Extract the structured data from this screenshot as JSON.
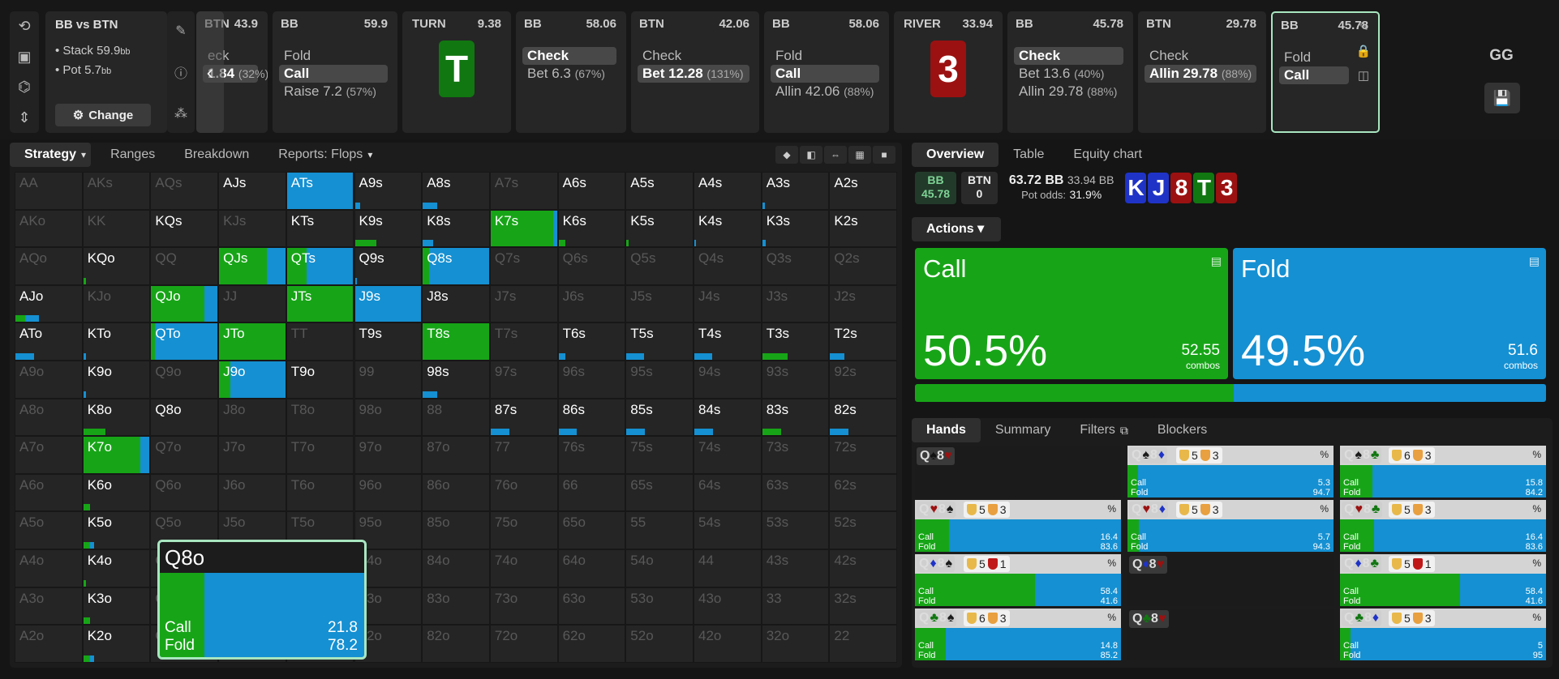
{
  "colors": {
    "call": "#17a517",
    "fold": "#1590d2",
    "accent": "#a8e6c0",
    "card_k": "#1f33c7",
    "card_j": "#1f33c7",
    "card_8": "#9b1111",
    "card_t": "#117711",
    "card_3": "#9b1111"
  },
  "spot": {
    "title": "BB vs BTN",
    "stack_label": "Stack",
    "stack_val": "59.9",
    "stack_unit": "bb",
    "pot_label": "Pot",
    "pot_val": "5.7",
    "pot_unit": "bb",
    "change_label": "Change"
  },
  "history": [
    {
      "player": "BTN",
      "stack": "43.9",
      "actions": [
        {
          "label": "eck",
          "pct": ""
        },
        {
          "label": "1.84",
          "pct": "(32%)",
          "sel": true
        }
      ]
    },
    {
      "player": "BB",
      "stack": "59.9",
      "actions": [
        {
          "label": "Fold",
          "pct": ""
        },
        {
          "label": "Call",
          "pct": "",
          "sel": true
        },
        {
          "label": "Raise 7.2",
          "pct": "(57%)"
        }
      ]
    },
    {
      "street": "TURN",
      "pot": "9.38",
      "card": "T"
    },
    {
      "player": "BB",
      "stack": "58.06",
      "actions": [
        {
          "label": "Check",
          "pct": "",
          "sel": true
        },
        {
          "label": "Bet 6.3",
          "pct": "(67%)"
        }
      ]
    },
    {
      "player": "BTN",
      "stack": "42.06",
      "actions": [
        {
          "label": "Check",
          "pct": ""
        },
        {
          "label": "Bet 12.28",
          "pct": "(131%)",
          "sel": true
        }
      ]
    },
    {
      "player": "BB",
      "stack": "58.06",
      "actions": [
        {
          "label": "Fold",
          "pct": ""
        },
        {
          "label": "Call",
          "pct": "",
          "sel": true
        },
        {
          "label": "Allin 42.06",
          "pct": "(88%)"
        }
      ]
    },
    {
      "street": "RIVER",
      "pot": "33.94",
      "card": "3"
    },
    {
      "player": "BB",
      "stack": "45.78",
      "actions": [
        {
          "label": "Check",
          "pct": "",
          "sel": true
        },
        {
          "label": "Bet 13.6",
          "pct": "(40%)"
        },
        {
          "label": "Allin 29.78",
          "pct": "(88%)"
        }
      ]
    },
    {
      "player": "BTN",
      "stack": "29.78",
      "actions": [
        {
          "label": "Check",
          "pct": ""
        },
        {
          "label": "Allin 29.78",
          "pct": "(88%)",
          "sel": true
        }
      ]
    },
    {
      "player": "BB",
      "stack": "45.78",
      "actions": [
        {
          "label": "Fold",
          "pct": ""
        },
        {
          "label": "Call",
          "pct": "",
          "sel": true
        }
      ],
      "active": true
    }
  ],
  "gg": "GG",
  "left_tabs": [
    "Strategy",
    "Ranges",
    "Breakdown",
    "Reports: Flops"
  ],
  "matrix": {
    "ranks": [
      "A",
      "K",
      "Q",
      "J",
      "T",
      "9",
      "8",
      "7",
      "6",
      "5",
      "4",
      "3",
      "2"
    ],
    "hands": {
      "ATs": [
        0,
        0.85
      ],
      "A9s": [
        0,
        0.08
      ],
      "A8s": [
        0,
        0.22
      ],
      "A3s": [
        0,
        0.04
      ],
      "K9s": [
        0.32,
        0
      ],
      "K8s": [
        0,
        0.16
      ],
      "K7s": [
        0.8,
        0.05
      ],
      "K6s": [
        0.1,
        0
      ],
      "K5s": [
        0.03,
        0
      ],
      "K4s": [
        0,
        0.02
      ],
      "K3s": [
        0,
        0.05
      ],
      "KQo": [
        0.04,
        0
      ],
      "QJs": [
        0.72,
        0.28
      ],
      "QTs": [
        0.3,
        0.7
      ],
      "Q9s": [
        0,
        0.03
      ],
      "Q8s": [
        0.1,
        0.9
      ],
      "AJo": [
        0.15,
        0.2
      ],
      "QJo": [
        0.8,
        0.2
      ],
      "JTs": [
        0.6,
        0
      ],
      "J9s": [
        0,
        0.82
      ],
      "ATo": [
        0,
        0.28
      ],
      "KTo": [
        0,
        0.04
      ],
      "QTo": [
        0.05,
        0.85
      ],
      "JTo": [
        0.55,
        0
      ],
      "T8s": [
        1,
        0
      ],
      "T6s": [
        0,
        0.1
      ],
      "T5s": [
        0,
        0.27
      ],
      "T4s": [
        0,
        0.27
      ],
      "T3s": [
        0.38,
        0
      ],
      "T2s": [
        0,
        0.22
      ],
      "K9o": [
        0,
        0.04
      ],
      "J9o": [
        0.15,
        0.72
      ],
      "98s": [
        0,
        0.22
      ],
      "K8o": [
        0.34,
        0
      ],
      "87s": [
        0,
        0.28
      ],
      "86s": [
        0,
        0.28
      ],
      "85s": [
        0,
        0.28
      ],
      "84s": [
        0,
        0.28
      ],
      "83s": [
        0.28,
        0
      ],
      "82s": [
        0,
        0.28
      ],
      "K7o": [
        0.75,
        0.12
      ],
      "K6o": [
        0.1,
        0
      ],
      "K5o": [
        0.1,
        0.06
      ],
      "K4o": [
        0.04,
        0
      ],
      "K3o": [
        0.1,
        0
      ],
      "K2o": [
        0.1,
        0.06
      ]
    },
    "present": [
      "AJs",
      "ATs",
      "A9s",
      "A8s",
      "A6s",
      "A5s",
      "A4s",
      "A3s",
      "A2s",
      "KQs",
      "KTs",
      "K9s",
      "K8s",
      "K7s",
      "K6s",
      "K5s",
      "K4s",
      "K3s",
      "K2s",
      "KQo",
      "QJs",
      "QTs",
      "Q9s",
      "Q8s",
      "AJo",
      "QJo",
      "JTs",
      "J9s",
      "J8s",
      "ATo",
      "KTo",
      "QTo",
      "JTo",
      "T9s",
      "T8s",
      "T6s",
      "T5s",
      "T4s",
      "T3s",
      "T2s",
      "K9o",
      "J9o",
      "T9o",
      "98s",
      "K8o",
      "Q8o",
      "87s",
      "86s",
      "85s",
      "84s",
      "83s",
      "82s",
      "K7o",
      "K6o",
      "K5o",
      "K4o",
      "K3o",
      "K2o"
    ]
  },
  "tooltip": {
    "hand": "Q8o",
    "call_label": "Call",
    "call_val": "21.8",
    "fold_label": "Fold",
    "fold_val": "78.2",
    "call_frac": 0.218
  },
  "right_tabs": [
    "Overview",
    "Table",
    "Equity chart"
  ],
  "pot": {
    "bb_label": "BB",
    "bb_val": "45.78",
    "btn_label": "BTN",
    "btn_val": "0",
    "pot_bb": "63.72 BB",
    "eff": "33.94 BB",
    "odds_label": "Pot odds:",
    "odds_val": "31.9%",
    "board": [
      "K",
      "J",
      "8",
      "T",
      "3"
    ]
  },
  "actions_label": "Actions",
  "call_action": {
    "name": "Call",
    "pct": "50.5%",
    "combos": "52.55",
    "combos_label": "combos",
    "frac": 0.505
  },
  "fold_action": {
    "name": "Fold",
    "pct": "49.5%",
    "combos": "51.6",
    "combos_label": "combos"
  },
  "hand_tabs": [
    "Hands",
    "Summary",
    "Filters",
    "Blockers"
  ],
  "hand_rows": [
    {
      "c1": "Q",
      "s1": "spade",
      "c2": "8",
      "s2": "heart",
      "only": true
    },
    {
      "c1": "Q",
      "s1": "spade",
      "c2": "8",
      "s2": "diam",
      "b1": "5",
      "b2": "3",
      "call": "5.3",
      "fold": "94.7"
    },
    {
      "c1": "Q",
      "s1": "spade",
      "c2": "8",
      "s2": "club",
      "b1": "6",
      "b2": "3",
      "call": "15.8",
      "fold": "84.2"
    },
    {
      "c1": "Q",
      "s1": "heart",
      "c2": "8",
      "s2": "spade",
      "b1": "5",
      "b2": "3",
      "call": "16.4",
      "fold": "83.6"
    },
    {
      "c1": "Q",
      "s1": "heart",
      "c2": "8",
      "s2": "diam",
      "b1": "5",
      "b2": "3",
      "call": "5.7",
      "fold": "94.3"
    },
    {
      "c1": "Q",
      "s1": "heart",
      "c2": "8",
      "s2": "club",
      "b1": "5",
      "b2": "3",
      "call": "16.4",
      "fold": "83.6"
    },
    {
      "c1": "Q",
      "s1": "diam",
      "c2": "8",
      "s2": "spade",
      "b1": "5",
      "b2": "1",
      "call": "58.4",
      "fold": "41.6"
    },
    {
      "c1": "Q",
      "s1": "diam",
      "c2": "8",
      "s2": "heart",
      "only": true
    },
    {
      "c1": "Q",
      "s1": "diam",
      "c2": "8",
      "s2": "club",
      "b1": "5",
      "b2": "1",
      "call": "58.4",
      "fold": "41.6"
    },
    {
      "c1": "Q",
      "s1": "club",
      "c2": "8",
      "s2": "spade",
      "b1": "6",
      "b2": "3",
      "call": "14.8",
      "fold": "85.2"
    },
    {
      "c1": "Q",
      "s1": "club",
      "c2": "8",
      "s2": "heart",
      "only": true
    },
    {
      "c1": "Q",
      "s1": "club",
      "c2": "8",
      "s2": "diam",
      "b1": "5",
      "b2": "3",
      "call": "5",
      "fold": "95"
    }
  ],
  "hand_labels": {
    "call": "Call",
    "fold": "Fold",
    "pct": "%"
  }
}
